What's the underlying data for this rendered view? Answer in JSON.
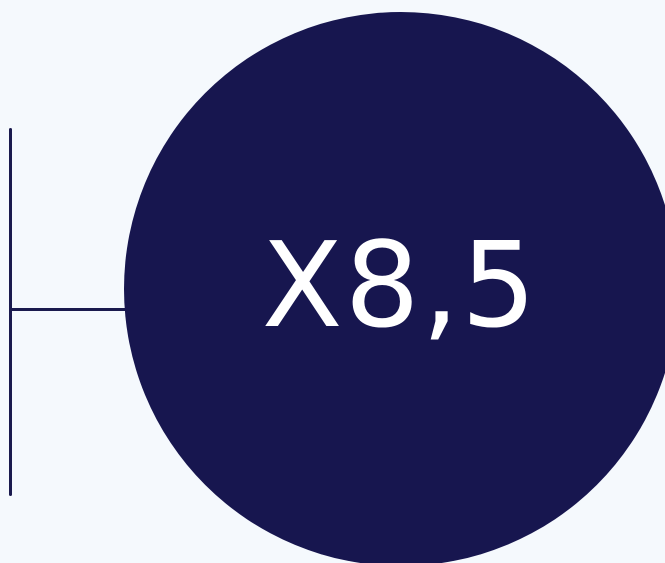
{
  "multiplier_text": "X8,5",
  "colors": {
    "background": "#F5F9FD",
    "circle": "#17164F",
    "bracket": "#1A1A4E",
    "text": "#FFFFFF"
  }
}
